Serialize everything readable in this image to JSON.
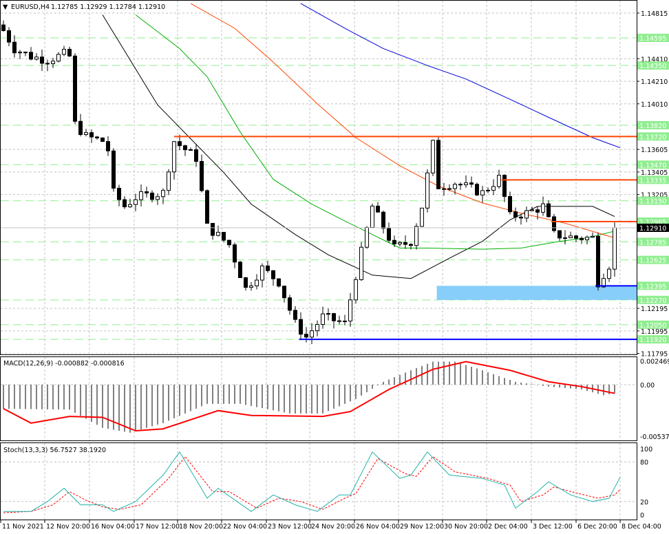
{
  "chart_data": {
    "type": "candlestick",
    "title": "EURUSD,H4",
    "ohlc_readout": [
      "1.12785",
      "1.12929",
      "1.12784",
      "1.12910"
    ],
    "current_price": "1.12910",
    "price_ticks": [
      "1.14815",
      "1.14410",
      "1.14210",
      "1.14010",
      "1.13605",
      "1.13405",
      "1.13205",
      "1.12195",
      "1.11995",
      "1.11795"
    ],
    "level_labels": [
      "1.14595",
      "1.14350",
      "1.13820",
      "1.13720",
      "1.13470",
      "1.13335",
      "1.13150",
      "1.12965",
      "1.12785",
      "1.12625",
      "1.12395",
      "1.12270",
      "1.12050",
      "1.11920"
    ],
    "green_levels": [
      1.14595,
      1.1435,
      1.1382,
      1.1347,
      1.1315,
      1.12785,
      1.12625,
      1.1227,
      1.1205,
      1.1192
    ],
    "x_labels": [
      "11 Nov 2021",
      "12 Nov 20:00",
      "16 Nov 04:00",
      "17 Nov 12:00",
      "18 Nov 20:00",
      "22 Nov 04:00",
      "23 Nov 12:00",
      "24 Nov 20:00",
      "26 Nov 04:00",
      "29 Nov 12:00",
      "30 Nov 20:00",
      "2 Dec 04:00",
      "3 Dec 12:00",
      "6 Dec 20:00",
      "8 Dec 04:00"
    ],
    "candle_count": 112,
    "close_keypoints": [
      [
        0,
        1.1466
      ],
      [
        2,
        1.145
      ],
      [
        5,
        1.1443
      ],
      [
        8,
        1.144
      ],
      [
        11,
        1.1445
      ],
      [
        12,
        1.1443
      ],
      [
        13,
        1.1383
      ],
      [
        15,
        1.1372
      ],
      [
        18,
        1.1368
      ],
      [
        19,
        1.136
      ],
      [
        20,
        1.1322
      ],
      [
        22,
        1.131
      ],
      [
        24,
        1.1318
      ],
      [
        29,
        1.1322
      ],
      [
        31,
        1.1368
      ],
      [
        35,
        1.1353
      ],
      [
        37,
        1.1292
      ],
      [
        41,
        1.1276
      ],
      [
        44,
        1.1237
      ],
      [
        47,
        1.1255
      ],
      [
        50,
        1.1243
      ],
      [
        53,
        1.1206
      ],
      [
        55,
        1.1194
      ],
      [
        58,
        1.1212
      ],
      [
        62,
        1.1206
      ],
      [
        64,
        1.1249
      ],
      [
        67,
        1.131
      ],
      [
        71,
        1.1273
      ],
      [
        74,
        1.1279
      ],
      [
        76,
        1.131
      ],
      [
        78,
        1.1365
      ],
      [
        79,
        1.1328
      ],
      [
        82,
        1.1331
      ],
      [
        87,
        1.1322
      ],
      [
        90,
        1.1335
      ],
      [
        92,
        1.1301
      ],
      [
        95,
        1.1304
      ],
      [
        98,
        1.131
      ],
      [
        100,
        1.1285
      ],
      [
        104,
        1.1282
      ],
      [
        107,
        1.1282
      ],
      [
        108,
        1.1243
      ],
      [
        110,
        1.1258
      ],
      [
        111,
        1.1291
      ]
    ],
    "moving_averages": [
      {
        "name": "MA fast",
        "color": "#000000",
        "points": [
          [
            18,
            1.148
          ],
          [
            28,
            1.14
          ],
          [
            34,
            1.137
          ],
          [
            40,
            1.134
          ],
          [
            45,
            1.1312
          ],
          [
            53,
            1.1285
          ],
          [
            59,
            1.1267
          ],
          [
            67,
            1.1249
          ],
          [
            74,
            1.1246
          ],
          [
            81,
            1.1264
          ],
          [
            87,
            1.1279
          ],
          [
            92,
            1.1298
          ],
          [
            97,
            1.131
          ],
          [
            102,
            1.131
          ],
          [
            107,
            1.131
          ],
          [
            111,
            1.1301
          ]
        ]
      },
      {
        "name": "MA medium",
        "color": "#00b000",
        "points": [
          [
            24,
            1.148
          ],
          [
            32,
            1.145
          ],
          [
            37,
            1.1425
          ],
          [
            43,
            1.1376
          ],
          [
            49,
            1.1334
          ],
          [
            56,
            1.1312
          ],
          [
            62,
            1.1297
          ],
          [
            67,
            1.1285
          ],
          [
            72,
            1.1273
          ],
          [
            77,
            1.1273
          ],
          [
            87,
            1.1272
          ],
          [
            94,
            1.1273
          ],
          [
            101,
            1.1279
          ],
          [
            106,
            1.1282
          ],
          [
            111,
            1.1288
          ]
        ]
      },
      {
        "name": "MA slow",
        "color": "#ff4500",
        "points": [
          [
            34,
            1.149
          ],
          [
            42,
            1.1468
          ],
          [
            49,
            1.1438
          ],
          [
            57,
            1.1401
          ],
          [
            64,
            1.1371
          ],
          [
            72,
            1.1346
          ],
          [
            79,
            1.1328
          ],
          [
            87,
            1.1313
          ],
          [
            94,
            1.1304
          ],
          [
            102,
            1.1295
          ],
          [
            111,
            1.1282
          ]
        ]
      },
      {
        "name": "MA long",
        "color": "#0000dd",
        "points": [
          [
            54,
            1.149
          ],
          [
            62,
            1.1468
          ],
          [
            69,
            1.145
          ],
          [
            77,
            1.1435
          ],
          [
            84,
            1.1423
          ],
          [
            92,
            1.1405
          ],
          [
            99,
            1.1389
          ],
          [
            107,
            1.1371
          ],
          [
            112,
            1.1362
          ]
        ]
      }
    ],
    "horizontal_lines": [
      {
        "price": 1.1372,
        "from": 31,
        "color": "#ff4500"
      },
      {
        "price": 1.13335,
        "from": 90.5,
        "color": "#ff4500"
      },
      {
        "price": 1.12965,
        "from": 99.5,
        "color": "#ff4500"
      },
      {
        "price": 1.12395,
        "from": 107.5,
        "color": "#0000ff"
      },
      {
        "price": 1.1192,
        "from": 53.7,
        "color": "#0000ff"
      }
    ],
    "zone": {
      "from": 78.7,
      "top": 1.12395,
      "bottom": 1.1227,
      "color": "#87cefa"
    },
    "macd": {
      "label": "MACD(12,26,9) -0.000882 -0.000816",
      "ticks": [
        "0.002469",
        "0.00",
        "-0.005374"
      ],
      "histogram_keypoints": [
        [
          0,
          -0.0025
        ],
        [
          12,
          -0.0026
        ],
        [
          18,
          -0.0045
        ],
        [
          23,
          -0.005
        ],
        [
          29,
          -0.004
        ],
        [
          37,
          -0.002
        ],
        [
          43,
          -0.002
        ],
        [
          52,
          -0.003
        ],
        [
          58,
          -0.003
        ],
        [
          64,
          -0.0015
        ],
        [
          69,
          0.0003
        ],
        [
          74,
          0.0015
        ],
        [
          78,
          0.0024
        ],
        [
          82,
          0.0024
        ],
        [
          87,
          0.0015
        ],
        [
          93,
          0.0003
        ],
        [
          99,
          -0.0002
        ],
        [
          105,
          -0.0005
        ],
        [
          109,
          -0.0011
        ],
        [
          111,
          -0.0009
        ]
      ],
      "signal_keypoints": [
        [
          0,
          -0.0025
        ],
        [
          5,
          -0.004
        ],
        [
          12,
          -0.0033
        ],
        [
          18,
          -0.0034
        ],
        [
          24,
          -0.0048
        ],
        [
          29,
          -0.0046
        ],
        [
          39,
          -0.0027
        ],
        [
          45,
          -0.0032
        ],
        [
          58,
          -0.0033
        ],
        [
          63,
          -0.0028
        ],
        [
          70,
          -0.0005
        ],
        [
          78,
          0.0016
        ],
        [
          84,
          0.0024
        ],
        [
          92,
          0.0015
        ],
        [
          99,
          0.0003
        ],
        [
          105,
          -0.0002
        ],
        [
          111,
          -0.0009
        ]
      ],
      "signal_color": "#ff0000"
    },
    "stoch": {
      "label": "Stoch(13,3,3) 56.7527 38.1920",
      "ticks": [
        "100",
        "80",
        "20",
        "0"
      ],
      "main_keypoints": [
        [
          0,
          5
        ],
        [
          5,
          5
        ],
        [
          8,
          20
        ],
        [
          11,
          40
        ],
        [
          14,
          15
        ],
        [
          18,
          15
        ],
        [
          20,
          5
        ],
        [
          24,
          20
        ],
        [
          29,
          60
        ],
        [
          32,
          95
        ],
        [
          37,
          25
        ],
        [
          39,
          40
        ],
        [
          45,
          5
        ],
        [
          49,
          30
        ],
        [
          53,
          15
        ],
        [
          57,
          5
        ],
        [
          61,
          30
        ],
        [
          63,
          30
        ],
        [
          67,
          95
        ],
        [
          72,
          55
        ],
        [
          74,
          60
        ],
        [
          77,
          95
        ],
        [
          81,
          60
        ],
        [
          87,
          55
        ],
        [
          91,
          45
        ],
        [
          93,
          10
        ],
        [
          97,
          35
        ],
        [
          99,
          50
        ],
        [
          103,
          30
        ],
        [
          107,
          20
        ],
        [
          110,
          25
        ],
        [
          112,
          57
        ]
      ],
      "signal_keypoints": [
        [
          0,
          3
        ],
        [
          5,
          5
        ],
        [
          9,
          15
        ],
        [
          12,
          35
        ],
        [
          15,
          22
        ],
        [
          18,
          12
        ],
        [
          21,
          8
        ],
        [
          25,
          15
        ],
        [
          30,
          55
        ],
        [
          33,
          88
        ],
        [
          38,
          35
        ],
        [
          41,
          35
        ],
        [
          46,
          10
        ],
        [
          50,
          25
        ],
        [
          54,
          20
        ],
        [
          58,
          8
        ],
        [
          62,
          25
        ],
        [
          64,
          32
        ],
        [
          68,
          85
        ],
        [
          73,
          62
        ],
        [
          75,
          58
        ],
        [
          78,
          88
        ],
        [
          82,
          65
        ],
        [
          88,
          55
        ],
        [
          92,
          45
        ],
        [
          94,
          20
        ],
        [
          98,
          30
        ],
        [
          100,
          42
        ],
        [
          104,
          33
        ],
        [
          108,
          25
        ],
        [
          111,
          30
        ],
        [
          112,
          38
        ]
      ],
      "main_color": "#20b2aa",
      "signal_color": "#ff0000"
    }
  }
}
